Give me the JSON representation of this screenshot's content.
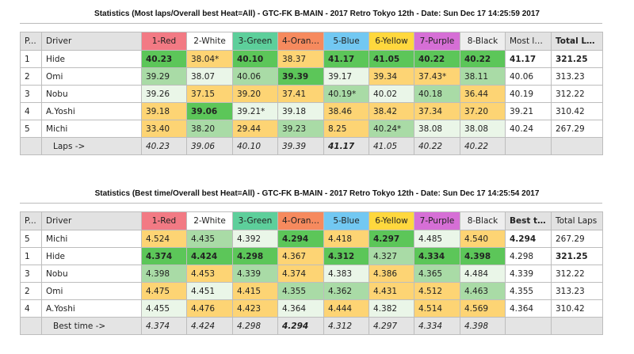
{
  "colors": {
    "1-Red": "#f27a84",
    "2-White": "#ffffff",
    "3-Green": "#5dcf9b",
    "4-Orange": "#f68a5e",
    "5-Blue": "#72c8f2",
    "6-Yellow": "#ffd83e",
    "7-Purple": "#d66fd6",
    "8-Black": "#eeeeee"
  },
  "tables": [
    {
      "title": "Statistics (Most laps/Overall best Heat=All) - GTC-FK B-MAIN - 2017 Retro Tokyo 12th - Date: Sun Dec 17 14:25:59 2017",
      "headers": [
        "P...",
        "Driver",
        "1-Red",
        "2-White",
        "3-Green",
        "4-Orange",
        "5-Blue",
        "6-Yellow",
        "7-Purple",
        "8-Black",
        "Most laps",
        "Total Laps"
      ],
      "bold_headers": [
        11
      ],
      "rows": [
        {
          "pos": "1",
          "driver": "Hide",
          "cells": [
            {
              "v": "40.23",
              "c": "G",
              "b": 1
            },
            {
              "v": "38.04*",
              "c": "Y"
            },
            {
              "v": "40.10",
              "c": "G",
              "b": 1
            },
            {
              "v": "38.37",
              "c": "Y"
            },
            {
              "v": "41.17",
              "c": "G",
              "b": 1
            },
            {
              "v": "41.05",
              "c": "G",
              "b": 1
            },
            {
              "v": "40.22",
              "c": "G",
              "b": 1
            },
            {
              "v": "40.22",
              "c": "G",
              "b": 1
            },
            {
              "v": "41.17",
              "c": "W",
              "b": 1
            },
            {
              "v": "321.25",
              "c": "W",
              "b": 1
            }
          ]
        },
        {
          "pos": "2",
          "driver": "Omi",
          "cells": [
            {
              "v": "39.29",
              "c": "L"
            },
            {
              "v": "38.07",
              "c": "V"
            },
            {
              "v": "40.06",
              "c": "L"
            },
            {
              "v": "39.39",
              "c": "G",
              "b": 1
            },
            {
              "v": "39.17",
              "c": "V"
            },
            {
              "v": "39.34",
              "c": "Y"
            },
            {
              "v": "37.43*",
              "c": "Y"
            },
            {
              "v": "38.11",
              "c": "L"
            },
            {
              "v": "40.06",
              "c": "W"
            },
            {
              "v": "313.23",
              "c": "W"
            }
          ]
        },
        {
          "pos": "3",
          "driver": "Nobu",
          "cells": [
            {
              "v": "39.26",
              "c": "V"
            },
            {
              "v": "37.15",
              "c": "Y"
            },
            {
              "v": "39.20",
              "c": "Y"
            },
            {
              "v": "37.41",
              "c": "Y"
            },
            {
              "v": "40.19*",
              "c": "L"
            },
            {
              "v": "40.02",
              "c": "V"
            },
            {
              "v": "40.18",
              "c": "L"
            },
            {
              "v": "36.44",
              "c": "Y"
            },
            {
              "v": "40.19",
              "c": "W"
            },
            {
              "v": "312.22",
              "c": "W"
            }
          ]
        },
        {
          "pos": "4",
          "driver": "A.Yoshi",
          "cells": [
            {
              "v": "39.18",
              "c": "Y"
            },
            {
              "v": "39.06",
              "c": "G",
              "b": 1
            },
            {
              "v": "39.21*",
              "c": "V"
            },
            {
              "v": "39.18",
              "c": "V"
            },
            {
              "v": "38.46",
              "c": "Y"
            },
            {
              "v": "38.42",
              "c": "Y"
            },
            {
              "v": "37.34",
              "c": "Y"
            },
            {
              "v": "37.20",
              "c": "Y"
            },
            {
              "v": "39.21",
              "c": "W"
            },
            {
              "v": "310.42",
              "c": "W"
            }
          ]
        },
        {
          "pos": "5",
          "driver": "Michi",
          "cells": [
            {
              "v": "33.40",
              "c": "Y"
            },
            {
              "v": "38.20",
              "c": "L"
            },
            {
              "v": "29.44",
              "c": "Y"
            },
            {
              "v": "39.23",
              "c": "L"
            },
            {
              "v": "8.25",
              "c": "Y"
            },
            {
              "v": "40.24*",
              "c": "L"
            },
            {
              "v": "38.08",
              "c": "V"
            },
            {
              "v": "38.08",
              "c": "V"
            },
            {
              "v": "40.24",
              "c": "W"
            },
            {
              "v": "267.29",
              "c": "W"
            }
          ]
        }
      ],
      "footer": {
        "label": "Laps ->",
        "cells": [
          {
            "v": "40.23"
          },
          {
            "v": "39.06"
          },
          {
            "v": "40.10"
          },
          {
            "v": "39.39"
          },
          {
            "v": "41.17",
            "b": 1
          },
          {
            "v": "41.05"
          },
          {
            "v": "40.22"
          },
          {
            "v": "40.22"
          },
          {
            "v": ""
          },
          {
            "v": ""
          }
        ]
      }
    },
    {
      "title": "Statistics (Best time/Overall best Heat=All) - GTC-FK B-MAIN - 2017 Retro Tokyo 12th - Date: Sun Dec 17 14:25:54 2017",
      "headers": [
        "P...",
        "Driver",
        "1-Red",
        "2-White",
        "3-Green",
        "4-Orange",
        "5-Blue",
        "6-Yellow",
        "7-Purple",
        "8-Black",
        "Best ti...",
        "Total Laps"
      ],
      "bold_headers": [
        10
      ],
      "rows": [
        {
          "pos": "5",
          "driver": "Michi",
          "cells": [
            {
              "v": "4.524",
              "c": "Y"
            },
            {
              "v": "4.435",
              "c": "L"
            },
            {
              "v": "4.392",
              "c": "V"
            },
            {
              "v": "4.294",
              "c": "G",
              "b": 1
            },
            {
              "v": "4.418",
              "c": "Y"
            },
            {
              "v": "4.297",
              "c": "G",
              "b": 1
            },
            {
              "v": "4.485",
              "c": "V"
            },
            {
              "v": "4.540",
              "c": "Y"
            },
            {
              "v": "4.294",
              "c": "W",
              "b": 1
            },
            {
              "v": "267.29",
              "c": "W"
            }
          ]
        },
        {
          "pos": "1",
          "driver": "Hide",
          "cells": [
            {
              "v": "4.374",
              "c": "G",
              "b": 1
            },
            {
              "v": "4.424",
              "c": "G",
              "b": 1
            },
            {
              "v": "4.298",
              "c": "G",
              "b": 1
            },
            {
              "v": "4.367",
              "c": "Y"
            },
            {
              "v": "4.312",
              "c": "G",
              "b": 1
            },
            {
              "v": "4.327",
              "c": "L"
            },
            {
              "v": "4.334",
              "c": "G",
              "b": 1
            },
            {
              "v": "4.398",
              "c": "G",
              "b": 1
            },
            {
              "v": "4.298",
              "c": "W"
            },
            {
              "v": "321.25",
              "c": "W",
              "b": 1
            }
          ]
        },
        {
          "pos": "3",
          "driver": "Nobu",
          "cells": [
            {
              "v": "4.398",
              "c": "L"
            },
            {
              "v": "4.453",
              "c": "Y"
            },
            {
              "v": "4.339",
              "c": "L"
            },
            {
              "v": "4.374",
              "c": "Y"
            },
            {
              "v": "4.383",
              "c": "V"
            },
            {
              "v": "4.386",
              "c": "Y"
            },
            {
              "v": "4.365",
              "c": "L"
            },
            {
              "v": "4.484",
              "c": "V"
            },
            {
              "v": "4.339",
              "c": "W"
            },
            {
              "v": "312.22",
              "c": "W"
            }
          ]
        },
        {
          "pos": "2",
          "driver": "Omi",
          "cells": [
            {
              "v": "4.475",
              "c": "Y"
            },
            {
              "v": "4.451",
              "c": "V"
            },
            {
              "v": "4.415",
              "c": "Y"
            },
            {
              "v": "4.355",
              "c": "L"
            },
            {
              "v": "4.362",
              "c": "L"
            },
            {
              "v": "4.431",
              "c": "Y"
            },
            {
              "v": "4.512",
              "c": "Y"
            },
            {
              "v": "4.463",
              "c": "L"
            },
            {
              "v": "4.355",
              "c": "W"
            },
            {
              "v": "313.23",
              "c": "W"
            }
          ]
        },
        {
          "pos": "4",
          "driver": "A.Yoshi",
          "cells": [
            {
              "v": "4.455",
              "c": "V"
            },
            {
              "v": "4.476",
              "c": "Y"
            },
            {
              "v": "4.423",
              "c": "Y"
            },
            {
              "v": "4.364",
              "c": "V"
            },
            {
              "v": "4.444",
              "c": "Y"
            },
            {
              "v": "4.382",
              "c": "V"
            },
            {
              "v": "4.514",
              "c": "Y"
            },
            {
              "v": "4.569",
              "c": "Y"
            },
            {
              "v": "4.364",
              "c": "W"
            },
            {
              "v": "310.42",
              "c": "W"
            }
          ]
        }
      ],
      "footer": {
        "label": "Best time ->",
        "cells": [
          {
            "v": "4.374"
          },
          {
            "v": "4.424"
          },
          {
            "v": "4.298"
          },
          {
            "v": "4.294",
            "b": 1
          },
          {
            "v": "4.312"
          },
          {
            "v": "4.297"
          },
          {
            "v": "4.334"
          },
          {
            "v": "4.398"
          },
          {
            "v": ""
          },
          {
            "v": ""
          }
        ]
      }
    }
  ]
}
